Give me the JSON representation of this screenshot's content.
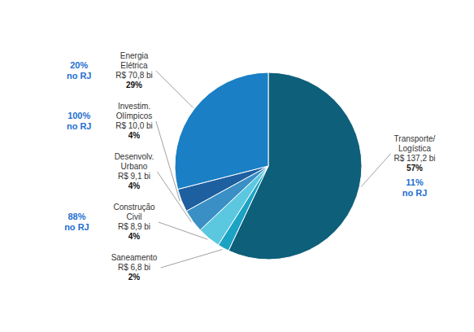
{
  "chart_data": {
    "type": "pie",
    "categories": [
      "Transporte/\nLogística",
      "Saneamento",
      "Construção\nCivil",
      "Desenvolv.\nUrbano",
      "Investim.\nOlímpicos",
      "Energia\nElétrica"
    ],
    "values": [
      57,
      2,
      4,
      4,
      4,
      29
    ],
    "value_labels": [
      "57%",
      "2%",
      "4%",
      "4%",
      "4%",
      "29%"
    ],
    "data_labels": true,
    "colors": [
      "#0e5f7a",
      "#1ca3c4",
      "#5bc8e0",
      "#3a8fc4",
      "#1e5fa0",
      "#1a7fc4"
    ],
    "amounts": [
      137.2,
      6.8,
      8.9,
      9.1,
      10.0,
      70.8
    ],
    "amount_labels": [
      "R$ 137,2 bi",
      "R$ 6,8 bi",
      "R$ 8,9 bi",
      "R$ 9,1 bi",
      "R$ 10,0 bi",
      "R$ 70,8 bi"
    ],
    "rj_shares": [
      11,
      null,
      88,
      null,
      100,
      20
    ],
    "rj_labels": [
      "11%\nno RJ",
      null,
      "88%\nno RJ",
      null,
      "100%\nno RJ",
      "20%\nno RJ"
    ]
  }
}
